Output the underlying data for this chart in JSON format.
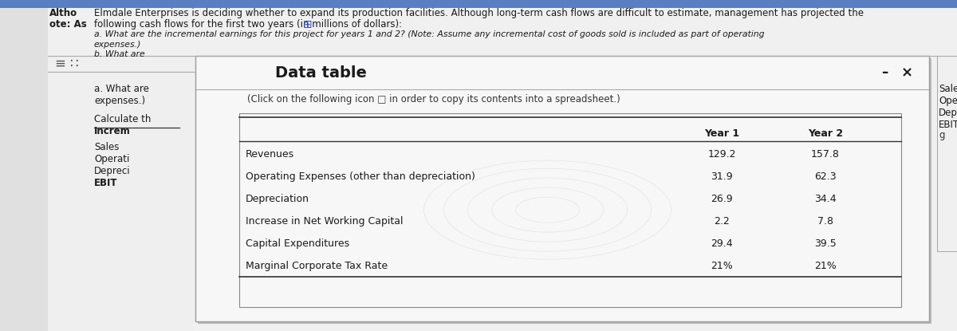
{
  "bg_color": "#dcdcdc",
  "header_text_line1": "Elmdale Enterprises is deciding whether to expand its production facilities. Although long-term cash flows are difficult to estimate, management has projected the",
  "header_text_line2": "following cash flows for the first two years (in millions of dollars):",
  "left_col_label1": "Altho",
  "left_col_label2": "ote: As",
  "question_a_line1": "a. What are the incremental earnings for this project for years 1 and 2? (Note: Assume any incremental cost of goods sold is included as part of operating",
  "question_a_line2": "expenses.)",
  "question_b": "b. What are",
  "dialog_title": "Data table",
  "click_text": "(Click on the following icon □ in order to copy its contents into a spreadsheet.)",
  "col_year1": "Year 1",
  "col_year2": "Year 2",
  "rows": [
    {
      "label": "Revenues",
      "y1": "129.2",
      "y2": "157.8"
    },
    {
      "label": "Operating Expenses (other than depreciation)",
      "y1": "31.9",
      "y2": "62.3"
    },
    {
      "label": "Depreciation",
      "y1": "26.9",
      "y2": "34.4"
    },
    {
      "label": "Increase in Net Working Capital",
      "y1": "2.2",
      "y2": "7.8"
    },
    {
      "label": "Capital Expenditures",
      "y1": "29.4",
      "y2": "39.5"
    },
    {
      "label": "Marginal Corporate Tax Rate",
      "y1": "21%",
      "y2": "21%"
    }
  ],
  "left_panel_labels": [
    {
      "text": "a. What are",
      "bold": false,
      "underline": false
    },
    {
      "text": "expenses.)",
      "bold": false,
      "underline": false
    },
    {
      "text": "Calculate th",
      "bold": false,
      "underline": false
    },
    {
      "text": "Increm",
      "bold": true,
      "underline": true
    },
    {
      "text": "Sales",
      "bold": false,
      "underline": false
    },
    {
      "text": "Operati",
      "bold": false,
      "underline": false
    },
    {
      "text": "Depreci",
      "bold": false,
      "underline": false
    },
    {
      "text": "EBIT",
      "bold": true,
      "underline": false
    }
  ]
}
